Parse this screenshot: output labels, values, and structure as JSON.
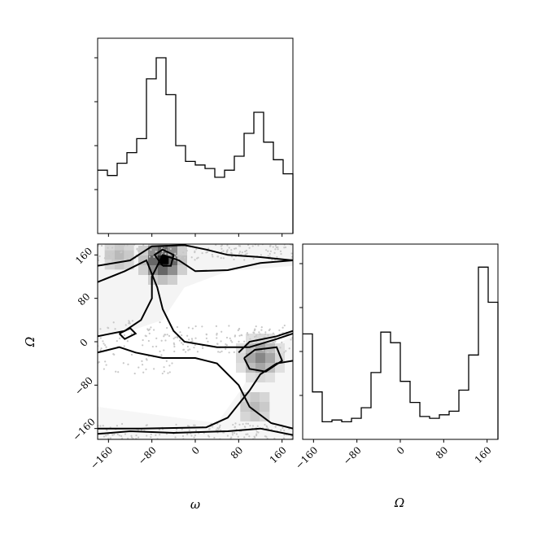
{
  "chart_data": {
    "type": "corner",
    "variables": [
      "ω",
      "Ω"
    ],
    "axis_labels": {
      "omega": "ω",
      "Omega": "Ω"
    },
    "ranges": {
      "omega": [
        -180,
        180
      ],
      "Omega": [
        -180,
        180
      ]
    },
    "tick_values": [
      -160,
      -80,
      0,
      80,
      160
    ],
    "tick_labels": [
      "−160",
      "−80",
      "0",
      "80",
      "160"
    ],
    "hist_omega": {
      "bin_edges": [
        -180,
        -162,
        -144,
        -126,
        -108,
        -90,
        -72,
        -54,
        -36,
        -18,
        0,
        18,
        36,
        54,
        72,
        90,
        108,
        126,
        144,
        162,
        180
      ],
      "counts": [
        0.36,
        0.33,
        0.4,
        0.46,
        0.54,
        0.88,
        1.0,
        0.79,
        0.5,
        0.41,
        0.39,
        0.37,
        0.32,
        0.36,
        0.44,
        0.57,
        0.69,
        0.52,
        0.42,
        0.34
      ]
    },
    "hist_Omega": {
      "bin_edges": [
        -180,
        -162,
        -144,
        -126,
        -108,
        -90,
        -72,
        -54,
        -36,
        -18,
        0,
        18,
        36,
        54,
        72,
        90,
        108,
        126,
        144,
        162,
        180
      ],
      "counts": [
        0.6,
        0.27,
        0.1,
        0.11,
        0.1,
        0.12,
        0.18,
        0.38,
        0.61,
        0.55,
        0.33,
        0.21,
        0.13,
        0.12,
        0.14,
        0.16,
        0.28,
        0.48,
        0.98,
        0.78
      ]
    },
    "density_peaks": [
      {
        "omega": -60,
        "Omega": 150,
        "weight": 1.0
      },
      {
        "omega": 120,
        "Omega": -30,
        "weight": 0.55
      },
      {
        "omega": 110,
        "Omega": -120,
        "weight": 0.3
      },
      {
        "omega": -140,
        "Omega": 160,
        "weight": 0.3
      }
    ]
  }
}
